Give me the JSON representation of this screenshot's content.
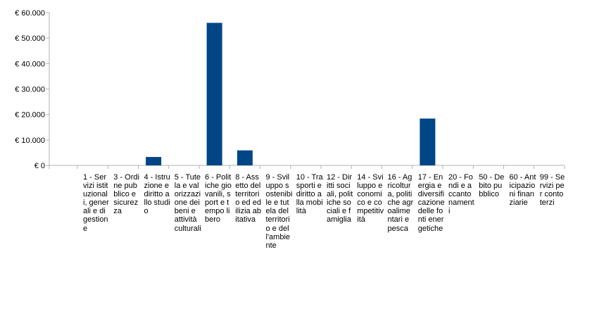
{
  "chart_data": {
    "type": "bar",
    "categories": [
      "1 - Servizi istituzionali, generali e di gestione",
      "3 - Ordine pubblico e sicurezza",
      "4 - Istruzione e diritto allo studio",
      "5 - Tutela e valorizzazione dei beni e attività culturali",
      "6 - Politiche giovanili, sport e tempo libero",
      "8 - Assetto del territorio ed edilizia abitativa",
      "9 - Sviluppo sostenibile e tutela del territorio e dell'ambiente",
      "10 - Trasporti e diritto alla mobilità",
      "12 - Diritti sociali, politiche sociali e famiglia",
      "14 - Sviluppo economico e competitività",
      "16 - Agricoltura, politiche agroalimentari e pesca",
      "17 - Energia e diversificazione delle fonti energetiche",
      "20 - Fondi e accantonamenti",
      "50 - Debito pubblico",
      "60 - Anticipazioni finanziarie",
      "99 - Servizi per conto terzi"
    ],
    "values": [
      0,
      0,
      3300,
      0,
      56000,
      5900,
      0,
      0,
      0,
      0,
      0,
      18400,
      0,
      0,
      0,
      0
    ],
    "yticks": [
      "€ 0",
      "€ 10.000",
      "€ 20.000",
      "€ 30.000",
      "€ 40.000",
      "€ 50.000",
      "€ 60.000"
    ],
    "ylim": [
      0,
      60000
    ],
    "bar_color": "#004586",
    "grid": false,
    "legend": "none"
  }
}
